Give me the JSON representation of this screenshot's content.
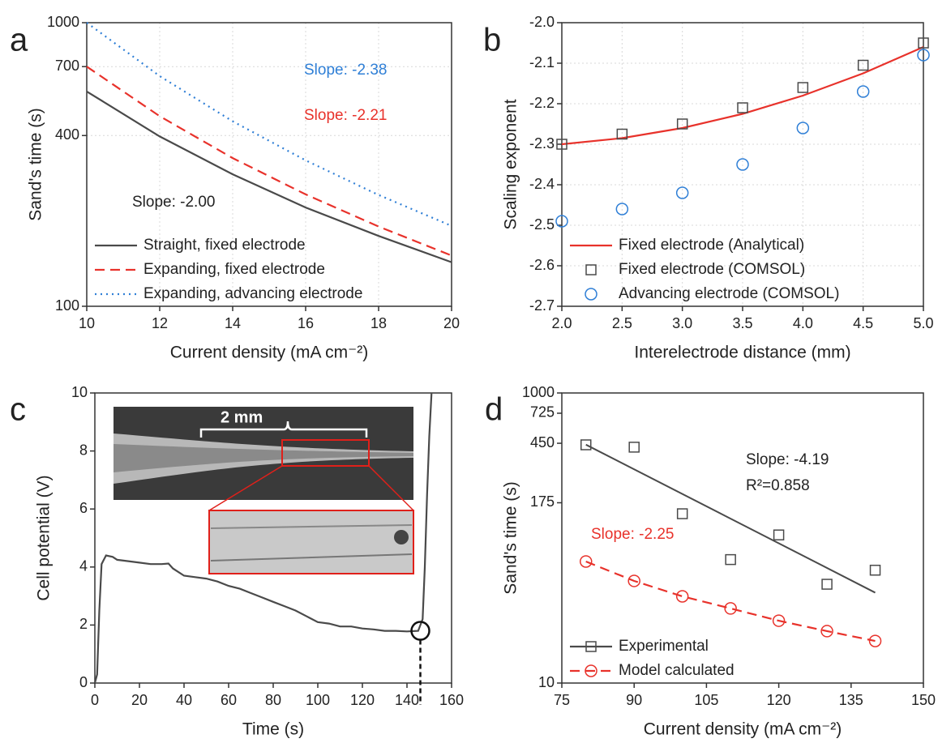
{
  "chart_data": [
    {
      "type": "line",
      "panel_label": "a",
      "xlabel": "Current density (mA cm⁻²)",
      "ylabel": "Sand's time (s)",
      "xlim": [
        10,
        20
      ],
      "xticks": [
        10,
        12,
        14,
        16,
        18,
        20
      ],
      "ylim": [
        100,
        1000
      ],
      "yticks": [
        100,
        400,
        700,
        1000
      ],
      "ylog": true,
      "grid": true,
      "legend": "lower left",
      "series": [
        {
          "name": "Straight, fixed electrode",
          "color": "#4a4a4a",
          "style": "solid",
          "marker": null,
          "x": [
            10,
            12,
            14,
            16,
            18,
            20
          ],
          "values": [
            572,
            397,
            292,
            223,
            177,
            143
          ]
        },
        {
          "name": "Expanding, fixed electrode",
          "color": "#e8322b",
          "style": "dashed",
          "marker": null,
          "x": [
            10,
            12,
            14,
            16,
            18,
            20
          ],
          "values": [
            700,
            468,
            333,
            248,
            191,
            151
          ]
        },
        {
          "name": "Expanding, advancing electrode",
          "color": "#2f7fd6",
          "style": "dotted",
          "marker": null,
          "x": [
            10,
            12,
            14,
            16,
            18,
            20
          ],
          "values": [
            1000,
            648,
            449,
            327,
            247,
            192
          ]
        }
      ],
      "annotations": [
        {
          "text": "Slope: -2.38",
          "color": "#2f7fd6"
        },
        {
          "text": "Slope: -2.21",
          "color": "#e8322b"
        },
        {
          "text": "Slope: -2.00",
          "color": "#222222"
        }
      ]
    },
    {
      "type": "line",
      "panel_label": "b",
      "xlabel": "Interelectrode distance (mm)",
      "ylabel": "Scaling exponent",
      "xlim": [
        2,
        5
      ],
      "xticks": [
        {
          "value": 2,
          "label": "2.0"
        },
        2.5,
        {
          "value": 3,
          "label": "3.0"
        },
        3.5,
        {
          "value": 4,
          "label": "4.0"
        },
        4.5,
        {
          "value": 5,
          "label": "5.0"
        }
      ],
      "ylim": [
        -2.7,
        -2.0
      ],
      "yticks": [
        {
          "value": -2.7,
          "label": "-2.7"
        },
        -2.6,
        -2.5,
        -2.4,
        -2.3,
        -2.2,
        -2.1,
        {
          "value": -2,
          "label": "-2.0"
        }
      ],
      "ylog": false,
      "grid": true,
      "legend": "lower left",
      "series": [
        {
          "name": "Fixed electrode (Analytical)",
          "color": "#e8322b",
          "style": "solid",
          "marker": null,
          "x": [
            2,
            2.5,
            3,
            3.5,
            4,
            4.5,
            5
          ],
          "values": [
            -2.3,
            -2.285,
            -2.26,
            -2.225,
            -2.18,
            -2.125,
            -2.06
          ]
        },
        {
          "name": "Fixed electrode (COMSOL)",
          "color": "#4a4a4a",
          "style": null,
          "marker": "square",
          "x": [
            2,
            2.5,
            3,
            3.5,
            4,
            4.5,
            5
          ],
          "values": [
            -2.3,
            -2.275,
            -2.25,
            -2.21,
            -2.16,
            -2.105,
            -2.05
          ]
        },
        {
          "name": "Advancing electrode (COMSOL)",
          "color": "#2f7fd6",
          "style": null,
          "marker": "circle",
          "x": [
            2,
            2.5,
            3,
            3.5,
            4,
            4.5,
            5
          ],
          "values": [
            -2.49,
            -2.46,
            -2.42,
            -2.35,
            -2.26,
            -2.17,
            -2.08
          ]
        }
      ],
      "annotations": []
    },
    {
      "type": "line",
      "panel_label": "c",
      "xlabel": "Time (s)",
      "ylabel": "Cell potential (V)",
      "xlim": [
        0,
        160
      ],
      "xticks": [
        0,
        20,
        40,
        60,
        80,
        100,
        120,
        140,
        160
      ],
      "ylim": [
        0,
        10
      ],
      "yticks": [
        0,
        2,
        4,
        6,
        8,
        10
      ],
      "ylog": false,
      "grid": false,
      "legend": null,
      "series": [
        {
          "color": "#4a4a4a",
          "style": "solid",
          "marker": null,
          "x": [
            0,
            1,
            2,
            3,
            5,
            8,
            10,
            15,
            20,
            25,
            30,
            33,
            35,
            40,
            45,
            50,
            55,
            60,
            65,
            70,
            75,
            80,
            85,
            90,
            95,
            100,
            105,
            110,
            115,
            120,
            125,
            130,
            135,
            140,
            145,
            147,
            148,
            149,
            150,
            151
          ],
          "values": [
            0,
            0.3,
            2.5,
            4.1,
            4.4,
            4.35,
            4.25,
            4.2,
            4.15,
            4.1,
            4.1,
            4.12,
            3.95,
            3.7,
            3.65,
            3.6,
            3.5,
            3.35,
            3.25,
            3.1,
            2.95,
            2.8,
            2.65,
            2.5,
            2.3,
            2.1,
            2.05,
            1.95,
            1.95,
            1.88,
            1.85,
            1.8,
            1.8,
            1.78,
            1.8,
            2.2,
            4,
            6.5,
            8.5,
            10
          ]
        }
      ],
      "failure_point": {
        "x": 146,
        "y": 1.8
      },
      "scale_bar": "2 mm",
      "annotations": []
    },
    {
      "type": "line",
      "panel_label": "d",
      "xlabel": "Current density (mA cm⁻²)",
      "ylabel": "Sand's time (s)",
      "xlim": [
        75,
        150
      ],
      "xticks": [
        75,
        90,
        105,
        120,
        135,
        150
      ],
      "ylim": [
        10,
        1000
      ],
      "yticks": [
        10,
        175,
        450,
        725,
        1000
      ],
      "ylog": true,
      "grid": false,
      "legend": "lower left",
      "series": [
        {
          "name": "Experimental",
          "color": "#4a4a4a",
          "style": "solid",
          "marker": "square",
          "x": [
            80,
            90,
            100,
            110,
            120,
            130,
            140
          ],
          "values": [
            439,
            423,
            147,
            71,
            105,
            48,
            60
          ],
          "fit": {
            "x": [
              80,
              140
            ],
            "values": [
              440,
              42
            ]
          }
        },
        {
          "name": "Model calculated",
          "color": "#e8322b",
          "style": "dashed",
          "marker": "circle",
          "x": [
            80,
            90,
            100,
            110,
            120,
            130,
            140
          ],
          "values": [
            68.9,
            50.6,
            39.6,
            32.7,
            26.9,
            22.8,
            19.5
          ]
        }
      ],
      "annotations": [
        {
          "text": "Slope: -4.19",
          "color": "#222222"
        },
        {
          "text": "R²=0.858",
          "color": "#222222"
        },
        {
          "text": "Slope: -2.25",
          "color": "#e8322b"
        }
      ]
    }
  ]
}
